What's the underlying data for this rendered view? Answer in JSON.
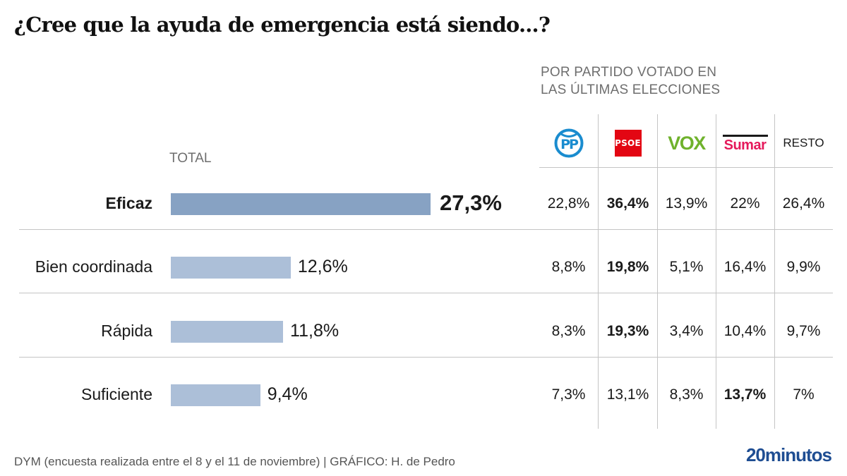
{
  "title": "¿Cree que la ayuda de emergencia está siendo...?",
  "subhead_line1": "POR PARTIDO VOTADO EN",
  "subhead_line2": "LAS ÚLTIMAS ELECCIONES",
  "total_label": "TOTAL",
  "colors": {
    "bar_highlight": "#87a2c3",
    "bar_default": "#acbfd8",
    "pp": "#1a8ccf",
    "psoe": "#e30613",
    "vox": "#6fb22c",
    "sumar": "#e5195b",
    "brand": "#1e4d92"
  },
  "parties": [
    {
      "name": "PP",
      "logo": "pp-logo"
    },
    {
      "name": "PSOE",
      "logo": "psoe-logo"
    },
    {
      "name": "VOX",
      "logo": "vox-logo"
    },
    {
      "name": "Sumar",
      "logo": "sumar-logo"
    },
    {
      "name": "RESTO",
      "logo": "resto-text"
    }
  ],
  "chart_data": {
    "type": "bar",
    "title": "¿Cree que la ayuda de emergencia está siendo...?",
    "xlabel": "",
    "ylabel": "",
    "categories": [
      "Eficaz",
      "Bien coordinada",
      "Rápida",
      "Suficiente"
    ],
    "values": [
      27.3,
      12.6,
      11.8,
      9.4
    ],
    "value_labels": [
      "27,3%",
      "12,6%",
      "11,8%",
      "9,4%"
    ],
    "highlight_index": 0,
    "unit": "%",
    "table": {
      "title": "POR PARTIDO VOTADO EN LAS ÚLTIMAS ELECCIONES",
      "columns": [
        "PP",
        "PSOE",
        "VOX",
        "Sumar",
        "RESTO"
      ],
      "rows": [
        {
          "category": "Eficaz",
          "values": [
            "22,8%",
            "36,4%",
            "13,9%",
            "22%",
            "26,4%"
          ],
          "bold_index": 1
        },
        {
          "category": "Bien coordinada",
          "values": [
            "8,8%",
            "19,8%",
            "5,1%",
            "16,4%",
            "9,9%"
          ],
          "bold_index": 1
        },
        {
          "category": "Rápida",
          "values": [
            "8,3%",
            "19,3%",
            "3,4%",
            "10,4%",
            "9,7%"
          ],
          "bold_index": 1
        },
        {
          "category": "Suficiente",
          "values": [
            "7,3%",
            "13,1%",
            "8,3%",
            "13,7%",
            "7%"
          ],
          "bold_index": 3
        }
      ]
    }
  },
  "footer": {
    "source": "DYM (encuesta realizada entre el 8 y el 11 de noviembre)  |  GRÁFICO: H. de Pedro",
    "brand": "20minutos"
  }
}
